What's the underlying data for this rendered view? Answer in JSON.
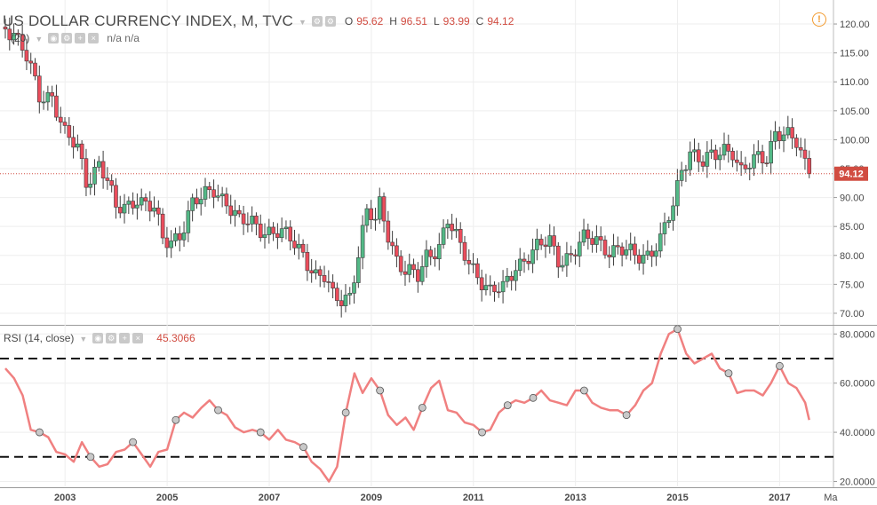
{
  "header": {
    "symbol_title": "US DOLLAR CURRENCY INDEX, M, TVC",
    "ohlc": [
      {
        "key": "O",
        "value": "95.62"
      },
      {
        "key": "H",
        "value": "96.51"
      },
      {
        "key": "L",
        "value": "93.99"
      },
      {
        "key": "C",
        "value": "94.12"
      }
    ],
    "ma_label": "(20)",
    "ma_values": "n/a n/a",
    "rsi_label": "RSI (14, close)",
    "rsi_value": "45.3066",
    "alert_icon": "exclamation-alert-icon"
  },
  "colors": {
    "up": "#53b987",
    "down": "#eb4d5c",
    "rsi_line": "#f08080",
    "price_line": "#d14c41",
    "grid": "#eeeeee",
    "axis_text": "#4a4a4a"
  },
  "chart_data": [
    {
      "type": "candlestick",
      "title": "US DOLLAR CURRENCY INDEX, M, TVC",
      "interval": "monthly",
      "x_ticks": [
        "2003",
        "2005",
        "2007",
        "2009",
        "2011",
        "2013",
        "2015",
        "2017",
        "Ma"
      ],
      "x_range": [
        "2001-10",
        "2017-12"
      ],
      "y_ticks": [
        "120.00",
        "115.00",
        "110.00",
        "105.00",
        "100.00",
        "95.00",
        "90.00",
        "85.00",
        "80.00",
        "75.00",
        "70.00"
      ],
      "ylim": [
        68,
        122
      ],
      "last_price": "94.12",
      "grid": true,
      "series_close": [
        [
          2001.83,
          119.5
        ],
        [
          2002.0,
          119.0
        ],
        [
          2002.25,
          114.0
        ],
        [
          2002.5,
          107.0
        ],
        [
          2002.75,
          108.0
        ],
        [
          2003.0,
          101.0
        ],
        [
          2003.25,
          98.0
        ],
        [
          2003.42,
          92.5
        ],
        [
          2003.67,
          96.5
        ],
        [
          2003.83,
          93.0
        ],
        [
          2004.0,
          87.5
        ],
        [
          2004.25,
          88.5
        ],
        [
          2004.42,
          90.5
        ],
        [
          2004.58,
          89.0
        ],
        [
          2004.75,
          88.0
        ],
        [
          2004.92,
          82.0
        ],
        [
          2005.08,
          82.5
        ],
        [
          2005.25,
          84.0
        ],
        [
          2005.5,
          89.0
        ],
        [
          2005.67,
          89.5
        ],
        [
          2005.92,
          91.5
        ],
        [
          2006.17,
          89.5
        ],
        [
          2006.42,
          85.5
        ],
        [
          2006.67,
          85.5
        ],
        [
          2006.92,
          84.5
        ],
        [
          2007.17,
          84.0
        ],
        [
          2007.42,
          82.5
        ],
        [
          2007.67,
          80.5
        ],
        [
          2007.92,
          76.5
        ],
        [
          2008.08,
          76.0
        ],
        [
          2008.25,
          72.5
        ],
        [
          2008.42,
          72.5
        ],
        [
          2008.58,
          73.5
        ],
        [
          2008.75,
          80.5
        ],
        [
          2008.92,
          87.5
        ],
        [
          2009.08,
          85.5
        ],
        [
          2009.17,
          89.0
        ],
        [
          2009.33,
          84.0
        ],
        [
          2009.5,
          79.5
        ],
        [
          2009.67,
          77.0
        ],
        [
          2009.92,
          76.0
        ],
        [
          2010.08,
          80.0
        ],
        [
          2010.33,
          82.0
        ],
        [
          2010.5,
          86.0
        ],
        [
          2010.75,
          81.0
        ],
        [
          2010.92,
          79.0
        ],
        [
          2011.08,
          77.0
        ],
        [
          2011.33,
          73.5
        ],
        [
          2011.58,
          74.0
        ],
        [
          2011.83,
          78.5
        ],
        [
          2012.0,
          79.5
        ],
        [
          2012.25,
          81.0
        ],
        [
          2012.5,
          82.5
        ],
        [
          2012.67,
          79.5
        ],
        [
          2012.92,
          80.0
        ],
        [
          2013.17,
          82.5
        ],
        [
          2013.42,
          83.0
        ],
        [
          2013.67,
          81.0
        ],
        [
          2013.92,
          80.5
        ],
        [
          2014.17,
          80.0
        ],
        [
          2014.42,
          80.5
        ],
        [
          2014.67,
          82.5
        ],
        [
          2014.92,
          88.5
        ],
        [
          2015.08,
          95.0
        ],
        [
          2015.25,
          98.5
        ],
        [
          2015.5,
          96.0
        ],
        [
          2015.75,
          97.0
        ],
        [
          2015.92,
          98.5
        ],
        [
          2016.08,
          98.5
        ],
        [
          2016.25,
          94.5
        ],
        [
          2016.42,
          95.5
        ],
        [
          2016.58,
          96.5
        ],
        [
          2016.75,
          97.0
        ],
        [
          2016.92,
          102.0
        ],
        [
          2017.17,
          100.5
        ],
        [
          2017.33,
          99.0
        ],
        [
          2017.42,
          97.0
        ],
        [
          2017.5,
          95.6
        ],
        [
          2017.58,
          94.12
        ]
      ]
    },
    {
      "type": "line",
      "title": "RSI (14, close)",
      "y_ticks": [
        "80.0000",
        "60.0000",
        "40.0000",
        "20.0000"
      ],
      "ylim": [
        18,
        83
      ],
      "levels": [
        70,
        30
      ],
      "last_value": "45.3066",
      "series": [
        {
          "x": [
            2001.83,
            2002.0,
            2002.17,
            2002.33,
            2002.5,
            2002.67,
            2002.83,
            2003.0,
            2003.17,
            2003.33,
            2003.5,
            2003.67,
            2003.83,
            2004.0,
            2004.17,
            2004.33,
            2004.5,
            2004.67,
            2004.83,
            2005.0,
            2005.17,
            2005.33,
            2005.5,
            2005.67,
            2005.83,
            2006.0,
            2006.17,
            2006.33,
            2006.5,
            2006.67,
            2006.83,
            2007.0,
            2007.17,
            2007.33,
            2007.5,
            2007.67,
            2007.83,
            2008.0,
            2008.17,
            2008.33,
            2008.5,
            2008.67,
            2008.83,
            2009.0,
            2009.17,
            2009.33,
            2009.5,
            2009.67,
            2009.83,
            2010.0,
            2010.17,
            2010.33,
            2010.5,
            2010.67,
            2010.83,
            2011.0,
            2011.17,
            2011.33,
            2011.5,
            2011.67,
            2011.83,
            2012.0,
            2012.17,
            2012.33,
            2012.5,
            2012.67,
            2012.83,
            2013.0,
            2013.17,
            2013.33,
            2013.5,
            2013.67,
            2013.83,
            2014.0,
            2014.17,
            2014.33,
            2014.5,
            2014.67,
            2014.83,
            2015.0,
            2015.17,
            2015.33,
            2015.5,
            2015.67,
            2015.83,
            2016.0,
            2016.17,
            2016.33,
            2016.5,
            2016.67,
            2016.83,
            2017.0,
            2017.17,
            2017.33,
            2017.5,
            2017.58
          ],
          "values": [
            66,
            62,
            55,
            41,
            40,
            38,
            32,
            31,
            28,
            36,
            30,
            26,
            27,
            32,
            33,
            36,
            31,
            26,
            32,
            33,
            45,
            48,
            46,
            50,
            53,
            49,
            47,
            42,
            40,
            41,
            40,
            37,
            41,
            37,
            36,
            34,
            28,
            25,
            20,
            26,
            48,
            64,
            56,
            62,
            57,
            47,
            43,
            46,
            41,
            50,
            58,
            61,
            49,
            48,
            44,
            43,
            40,
            41,
            48,
            51,
            53,
            52,
            54,
            57,
            53,
            52,
            51,
            57,
            57,
            52,
            50,
            49,
            49,
            47,
            51,
            57,
            60,
            72,
            80,
            82,
            72,
            68,
            70,
            72,
            66,
            64,
            56,
            57,
            57,
            55,
            60,
            67,
            60,
            58,
            52,
            45
          ]
        }
      ]
    }
  ]
}
